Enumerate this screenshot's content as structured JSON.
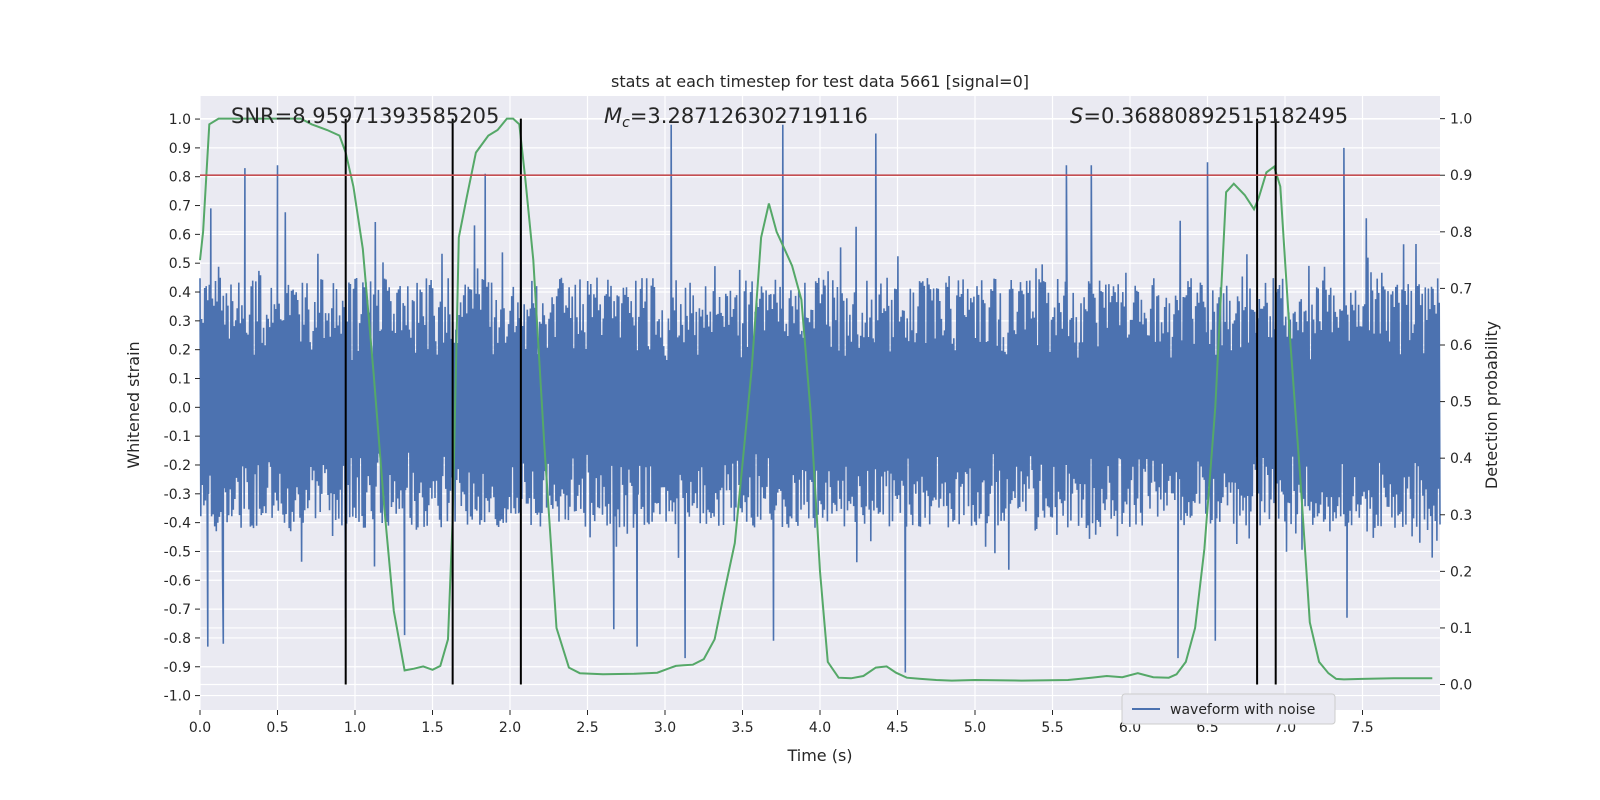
{
  "chart_data": {
    "type": "line",
    "title": "stats at each timestep for test data 5661 [signal=0]",
    "xlabel": "Time (s)",
    "ylabel": "Whitened strain",
    "y2label": "Detection probability",
    "xlim": [
      0.0,
      8.0
    ],
    "ylim": [
      -1.05,
      1.08
    ],
    "y2lim": [
      -0.045,
      1.04
    ],
    "x_ticks": [
      0.0,
      0.5,
      1.0,
      1.5,
      2.0,
      2.5,
      3.0,
      3.5,
      4.0,
      4.5,
      5.0,
      5.5,
      6.0,
      6.5,
      7.0,
      7.5
    ],
    "x_tick_labels": [
      "0.0",
      "0.5",
      "1.0",
      "1.5",
      "2.0",
      "2.5",
      "3.0",
      "3.5",
      "4.0",
      "4.5",
      "5.0",
      "5.5",
      "6.0",
      "6.5",
      "7.0",
      "7.5"
    ],
    "y_ticks": [
      1.0,
      0.9,
      0.8,
      0.7,
      0.6,
      0.5,
      0.4,
      0.3,
      0.2,
      0.1,
      0.0,
      -0.1,
      -0.2,
      -0.3,
      -0.4,
      -0.5,
      -0.6,
      -0.7,
      -0.8,
      -0.9,
      -1.0
    ],
    "y_tick_labels": [
      "1.0",
      "0.9",
      "0.8",
      "0.7",
      "0.6",
      "0.5",
      "0.4",
      "0.3",
      "0.2",
      "0.1",
      "0.0",
      "-0.1",
      "-0.2",
      "-0.3",
      "-0.4",
      "-0.5",
      "-0.6",
      "-0.7",
      "-0.8",
      "-0.9",
      "-1.0"
    ],
    "y2_ticks": [
      1.0,
      0.9,
      0.8,
      0.7,
      0.6,
      0.5,
      0.4,
      0.3,
      0.2,
      0.1,
      0.0
    ],
    "y2_tick_labels": [
      "1.0",
      "0.9",
      "0.8",
      "0.7",
      "0.6",
      "0.5",
      "0.4",
      "0.3",
      "0.2",
      "0.1",
      "0.0"
    ],
    "annotations": {
      "snr": "SNR=8.95971393585205",
      "mc_symbol": "M",
      "mc_sub": "c",
      "mc_value": "=3.287126302719116",
      "s_symbol": "S",
      "s_value": "=0.36880892515182495"
    },
    "threshold": 0.9,
    "threshold_color": "#c44e52",
    "detection_lines_x": [
      0.94,
      1.63,
      2.07,
      6.82,
      6.94
    ],
    "waveform": {
      "name": "waveform with noise",
      "color": "#4c72b0",
      "duration_s": 8.0,
      "sample_count": 1600,
      "typical_max": 0.45,
      "typical_min": -0.42,
      "peaks": [
        {
          "x": 0.07,
          "y": 0.69
        },
        {
          "x": 0.29,
          "y": 0.83
        },
        {
          "x": 0.5,
          "y": 0.84
        },
        {
          "x": 1.84,
          "y": 0.81
        },
        {
          "x": 2.07,
          "y": 0.84
        },
        {
          "x": 3.04,
          "y": 0.98
        },
        {
          "x": 3.76,
          "y": 0.98
        },
        {
          "x": 4.36,
          "y": 0.95
        },
        {
          "x": 6.5,
          "y": 0.85
        },
        {
          "x": 7.38,
          "y": 0.9
        },
        {
          "x": 5.59,
          "y": 0.84
        },
        {
          "x": 5.75,
          "y": 0.84
        }
      ],
      "troughs": [
        {
          "x": 0.05,
          "y": -0.83
        },
        {
          "x": 0.15,
          "y": -0.82
        },
        {
          "x": 1.32,
          "y": -0.79
        },
        {
          "x": 2.67,
          "y": -0.77
        },
        {
          "x": 2.82,
          "y": -0.83
        },
        {
          "x": 3.13,
          "y": -0.87
        },
        {
          "x": 4.55,
          "y": -0.92
        },
        {
          "x": 6.31,
          "y": -0.87
        },
        {
          "x": 6.55,
          "y": -0.81
        },
        {
          "x": 7.4,
          "y": -0.73
        },
        {
          "x": 0.94,
          "y": -0.73
        },
        {
          "x": 3.7,
          "y": -0.81
        }
      ]
    },
    "probability": {
      "color": "#55a868",
      "x": [
        0.0,
        0.02,
        0.06,
        0.12,
        0.3,
        0.5,
        0.65,
        0.72,
        0.82,
        0.9,
        0.94,
        0.99,
        1.05,
        1.12,
        1.19,
        1.25,
        1.32,
        1.38,
        1.44,
        1.5,
        1.55,
        1.6,
        1.63,
        1.67,
        1.72,
        1.78,
        1.86,
        1.92,
        1.98,
        2.02,
        2.06,
        2.1,
        2.15,
        2.22,
        2.3,
        2.38,
        2.45,
        2.6,
        2.8,
        2.95,
        3.02,
        3.07,
        3.12,
        3.18,
        3.25,
        3.32,
        3.38,
        3.45,
        3.5,
        3.56,
        3.62,
        3.67,
        3.72,
        3.77,
        3.82,
        3.88,
        3.94,
        4.0,
        4.05,
        4.12,
        4.2,
        4.28,
        4.36,
        4.43,
        4.49,
        4.56,
        4.65,
        4.75,
        4.85,
        5.0,
        5.3,
        5.6,
        5.75,
        5.85,
        5.95,
        6.05,
        6.15,
        6.25,
        6.3,
        6.36,
        6.42,
        6.48,
        6.55,
        6.62,
        6.67,
        6.74,
        6.8,
        6.83,
        6.88,
        6.93,
        6.97,
        7.03,
        7.1,
        7.16,
        7.22,
        7.28,
        7.33,
        7.38,
        7.5,
        7.7,
        7.9,
        7.95
      ],
      "y": [
        0.75,
        0.8,
        0.99,
        1.0,
        1.0,
        1.0,
        1.0,
        0.99,
        0.98,
        0.97,
        0.94,
        0.88,
        0.77,
        0.55,
        0.31,
        0.13,
        0.025,
        0.028,
        0.032,
        0.026,
        0.033,
        0.08,
        0.29,
        0.79,
        0.86,
        0.94,
        0.97,
        0.98,
        1.0,
        1.0,
        0.99,
        0.89,
        0.75,
        0.43,
        0.1,
        0.03,
        0.02,
        0.018,
        0.019,
        0.021,
        0.028,
        0.033,
        0.034,
        0.035,
        0.045,
        0.08,
        0.16,
        0.25,
        0.39,
        0.56,
        0.79,
        0.85,
        0.8,
        0.77,
        0.74,
        0.68,
        0.48,
        0.2,
        0.04,
        0.012,
        0.011,
        0.015,
        0.03,
        0.032,
        0.021,
        0.012,
        0.01,
        0.008,
        0.007,
        0.008,
        0.007,
        0.008,
        0.012,
        0.015,
        0.013,
        0.02,
        0.013,
        0.012,
        0.018,
        0.04,
        0.1,
        0.24,
        0.49,
        0.87,
        0.885,
        0.865,
        0.84,
        0.86,
        0.905,
        0.915,
        0.88,
        0.62,
        0.36,
        0.11,
        0.04,
        0.02,
        0.01,
        0.009,
        0.01,
        0.011,
        0.011,
        0.011
      ]
    },
    "legend": {
      "placement": "bottom-right",
      "label": "waveform with noise"
    },
    "grid": true,
    "background": "#eaeaf2"
  }
}
